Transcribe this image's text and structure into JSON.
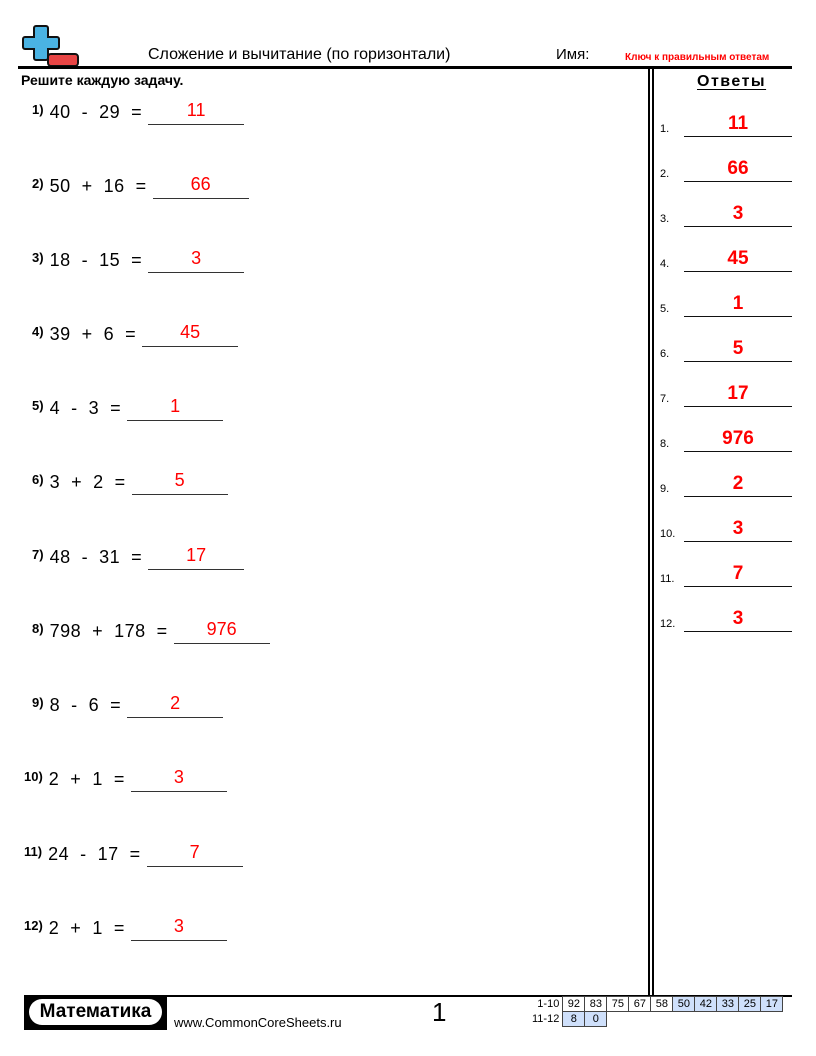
{
  "header": {
    "title": "Сложение и вычитание (по горизонтали)",
    "name_label": "Имя:",
    "answer_key_label": "Ключ к правильным ответам",
    "instructions": "Решите каждую задачу.",
    "logo_icon": "plus-minus-icon",
    "colors": {
      "plus": "#4ab3e3",
      "minus": "#e84545",
      "answer": "#ff0000"
    }
  },
  "problems": [
    {
      "num": "1)",
      "expr": "40  -  29  =",
      "answer": "11"
    },
    {
      "num": "2)",
      "expr": "50  +  16  =",
      "answer": "66"
    },
    {
      "num": "3)",
      "expr": "18  -  15  =",
      "answer": "3"
    },
    {
      "num": "4)",
      "expr": "39  +  6  =",
      "answer": "45"
    },
    {
      "num": "5)",
      "expr": "4  -  3  =",
      "answer": "1"
    },
    {
      "num": "6)",
      "expr": "3  +  2  =",
      "answer": "5"
    },
    {
      "num": "7)",
      "expr": "48  -  31  =",
      "answer": "17"
    },
    {
      "num": "8)",
      "expr": "798  +  178  =",
      "answer": "976"
    },
    {
      "num": "9)",
      "expr": "8  -  6  =",
      "answer": "2"
    },
    {
      "num": "10)",
      "expr": "2  +  1  =",
      "answer": "3"
    },
    {
      "num": "11)",
      "expr": "24  -  17  =",
      "answer": "7"
    },
    {
      "num": "12)",
      "expr": "2  +  1  =",
      "answer": "3"
    }
  ],
  "answers": {
    "title": "Ответы",
    "items": [
      {
        "num": "1.",
        "value": "11"
      },
      {
        "num": "2.",
        "value": "66"
      },
      {
        "num": "3.",
        "value": "3"
      },
      {
        "num": "4.",
        "value": "45"
      },
      {
        "num": "5.",
        "value": "1"
      },
      {
        "num": "6.",
        "value": "5"
      },
      {
        "num": "7.",
        "value": "17"
      },
      {
        "num": "8.",
        "value": "976"
      },
      {
        "num": "9.",
        "value": "2"
      },
      {
        "num": "10.",
        "value": "3"
      },
      {
        "num": "11.",
        "value": "7"
      },
      {
        "num": "12.",
        "value": "3"
      }
    ]
  },
  "footer": {
    "brand": "Математика",
    "site": "www.CommonCoreSheets.ru",
    "page": "1",
    "score_rows": [
      {
        "label": "1-10",
        "cells": [
          "92",
          "83",
          "75",
          "67",
          "58",
          "50",
          "42",
          "33",
          "25",
          "17"
        ],
        "blue_from": 5
      },
      {
        "label": "11-12",
        "cells": [
          "8",
          "0"
        ],
        "blue_from": 0
      }
    ]
  }
}
